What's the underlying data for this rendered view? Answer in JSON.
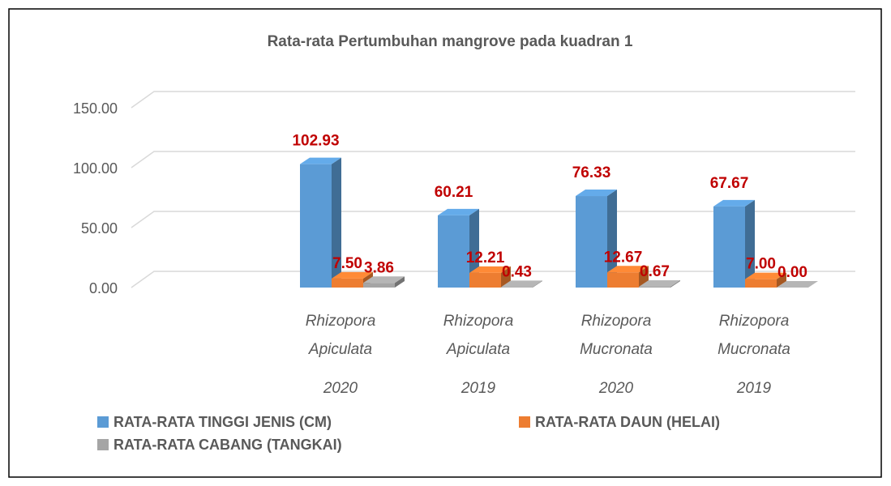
{
  "chart_data": {
    "type": "bar3d",
    "title": "Rata-rata Pertumbuhan mangrove pada kuadran 1",
    "categories": [
      [
        "Rhizopora Apiculata",
        "2020"
      ],
      [
        "Rhizopora Apiculata",
        "2019"
      ],
      [
        "Rhizopora Mucronata",
        "2020"
      ],
      [
        "Rhizopora Mucronata",
        "2019"
      ]
    ],
    "series": [
      {
        "name": "RATA-RATA TINGGI JENIS (CM)",
        "color": "#5b9bd5",
        "values": [
          102.93,
          60.21,
          76.33,
          67.67
        ],
        "value_labels": [
          "102.93",
          "60.21",
          "76.33",
          "67.67"
        ]
      },
      {
        "name": "RATA-RATA DAUN (HELAI)",
        "color": "#ed7d31",
        "values": [
          7.5,
          12.21,
          12.67,
          7
        ],
        "value_labels": [
          "7.50",
          "12.21",
          "12.67",
          "7.00"
        ]
      },
      {
        "name": "RATA-RATA CABANG (TANGKAI)",
        "color": "#a5a5a5",
        "values": [
          3.86,
          0.43,
          0.67,
          0
        ],
        "value_labels": [
          "3.86",
          "0.43",
          "0.67",
          "0.00"
        ]
      }
    ],
    "ylim": [
      0,
      150
    ],
    "yticks": [
      {
        "value": 0,
        "label": "0.00"
      },
      {
        "value": 50,
        "label": "50.00"
      },
      {
        "value": 100,
        "label": "100.00"
      },
      {
        "value": 150,
        "label": "150.00"
      }
    ],
    "grid": true,
    "value_label_color": "#c00000"
  }
}
